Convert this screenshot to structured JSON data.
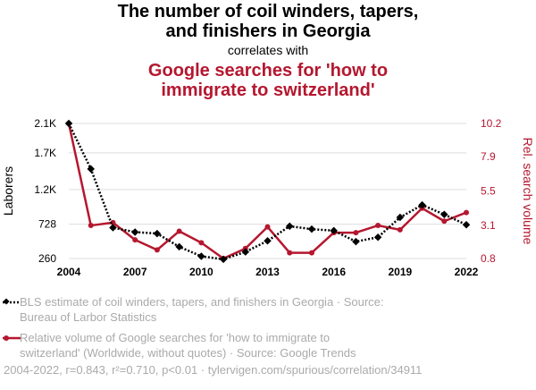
{
  "header": {
    "title": "The number of coil winders, tapers, and finishers in Georgia",
    "title_line1": "The number of coil winders, tapers,",
    "title_line2": "and finishers in Georgia",
    "correlates": "correlates with",
    "subtitle_line1": "Google searches for 'how to",
    "subtitle_line2": "immigrate to switzerland'"
  },
  "legend": {
    "series1_line1": "BLS estimate of coil winders, tapers, and finishers in Georgia · Source:",
    "series1_line2": "Bureau of Larbor Statistics",
    "series2_line1": "Relative volume of Google searches for 'how to immigrate to",
    "series2_line2": "switzerland' (Worldwide, without quotes) · Source: Google Trends"
  },
  "footer": {
    "text": "2004-2022, r=0.843, r²=0.710, p<0.01 · tylervigen.com/spurious/correlation/34911"
  },
  "colors": {
    "series1": "#000000",
    "series2": "#b5172f",
    "grid": "#dddddd"
  },
  "chart_data": {
    "type": "line",
    "title": "The number of coil winders, tapers, and finishers in Georgia",
    "subtitle": "Google searches for 'how to immigrate to switzerland'",
    "x": [
      2004,
      2005,
      2006,
      2007,
      2008,
      2009,
      2010,
      2011,
      2012,
      2013,
      2014,
      2015,
      2016,
      2017,
      2018,
      2019,
      2020,
      2021,
      2022
    ],
    "xlabel": "",
    "x_ticks": [
      "2004",
      "2007",
      "2010",
      "2013",
      "2016",
      "2019",
      "2022"
    ],
    "ylabel_left": "Laborers",
    "ylabel_right": "Rel. search volume",
    "ylim_left": [
      260,
      2100
    ],
    "ylim_right": [
      0.8,
      10.2
    ],
    "left_ticks": [
      {
        "value": 260,
        "label": "260"
      },
      {
        "value": 728,
        "label": "728"
      },
      {
        "value": 1200,
        "label": "1.2K"
      },
      {
        "value": 1700,
        "label": "1.7K"
      },
      {
        "value": 2100,
        "label": "2.1K"
      }
    ],
    "right_ticks": [
      {
        "value": 0.8,
        "label": "0.8"
      },
      {
        "value": 3.1,
        "label": "3.1"
      },
      {
        "value": 5.5,
        "label": "5.5"
      },
      {
        "value": 7.9,
        "label": "7.9"
      },
      {
        "value": 10.2,
        "label": "10.2"
      }
    ],
    "series": [
      {
        "name": "BLS estimate of coil winders, tapers, and finishers in Georgia",
        "axis": "left",
        "style": "dotted-diamond",
        "values": [
          2100,
          1480,
          680,
          620,
          600,
          420,
          290,
          250,
          350,
          500,
          700,
          660,
          640,
          490,
          550,
          820,
          990,
          860,
          720
        ]
      },
      {
        "name": "Relative volume of Google searches for 'how to immigrate to switzerland' (Worldwide, without quotes)",
        "axis": "right",
        "style": "solid",
        "values": [
          10.2,
          3.1,
          3.3,
          2.1,
          1.4,
          2.7,
          1.9,
          0.8,
          1.5,
          3.0,
          1.2,
          1.2,
          2.6,
          2.6,
          3.1,
          2.8,
          4.3,
          3.4,
          4.0
        ]
      }
    ]
  }
}
